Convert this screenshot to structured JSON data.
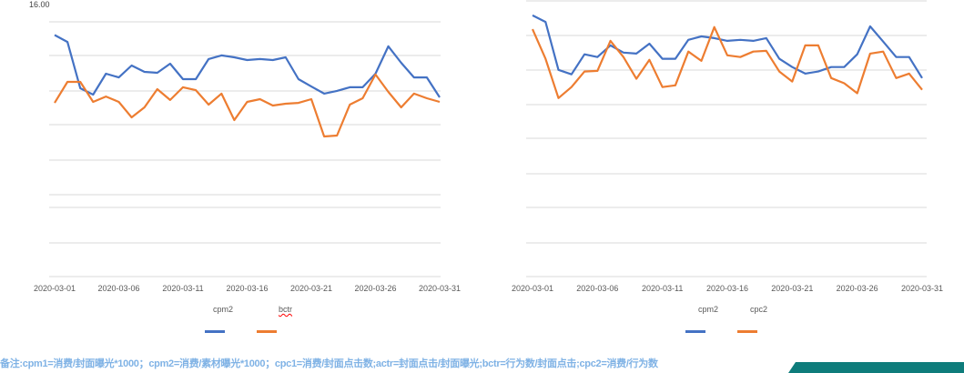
{
  "chart_data": [
    {
      "type": "line",
      "x_start": "2020-03-01",
      "x_end": "2020-03-31",
      "xticks": [
        "2020-03-01",
        "2020-03-06",
        "2020-03-11",
        "2020-03-16",
        "2020-03-21",
        "2020-03-26",
        "2020-03-31"
      ],
      "ytop_label": "16.00",
      "ylim": [
        0,
        16
      ],
      "grid": true,
      "legend": "bottom",
      "series": [
        {
          "name": "cpm2",
          "color": "#4472c4",
          "values": [
            15.17,
            14.74,
            11.83,
            11.43,
            12.74,
            12.51,
            13.26,
            12.86,
            12.8,
            13.37,
            12.4,
            12.4,
            13.66,
            13.89,
            13.77,
            13.6,
            13.66,
            13.6,
            13.77,
            12.4,
            11.94,
            11.49,
            11.66,
            11.89,
            11.89,
            12.74,
            14.46,
            13.43,
            12.51,
            12.51,
            11.26
          ]
        },
        {
          "name": "bctr",
          "color": "#ed7d31",
          "values": [
            10.91,
            12.23,
            12.23,
            10.97,
            11.31,
            10.97,
            10.0,
            10.63,
            11.77,
            11.09,
            11.89,
            11.71,
            10.8,
            11.49,
            9.83,
            10.97,
            11.14,
            10.74,
            10.86,
            10.91,
            11.14,
            8.8,
            8.86,
            10.8,
            11.2,
            12.69,
            11.6,
            10.63,
            11.49,
            11.2,
            10.97
          ]
        }
      ]
    },
    {
      "type": "line",
      "x_start": "2020-03-01",
      "x_end": "2020-03-31",
      "xticks": [
        "2020-03-01",
        "2020-03-06",
        "2020-03-11",
        "2020-03-16",
        "2020-03-21",
        "2020-03-26",
        "2020-03-31"
      ],
      "ylim": [
        0,
        8
      ],
      "grid": true,
      "legend": "bottom",
      "series": [
        {
          "name": "cpm2",
          "color": "#4472c4",
          "values": [
            7.58,
            7.39,
            6.0,
            5.87,
            6.45,
            6.37,
            6.71,
            6.5,
            6.47,
            6.76,
            6.32,
            6.32,
            6.87,
            6.97,
            6.92,
            6.84,
            6.87,
            6.84,
            6.92,
            6.32,
            6.08,
            5.89,
            5.95,
            6.08,
            6.08,
            6.45,
            7.26,
            6.82,
            6.37,
            6.37,
            5.76
          ]
        },
        {
          "name": "cpc2",
          "color": "#ed7d31",
          "values": [
            7.18,
            6.32,
            5.18,
            5.5,
            5.95,
            5.97,
            6.84,
            6.37,
            5.74,
            6.29,
            5.5,
            5.55,
            6.53,
            6.26,
            7.24,
            6.42,
            6.37,
            6.53,
            6.55,
            5.95,
            5.66,
            6.71,
            6.71,
            5.76,
            5.61,
            5.32,
            6.47,
            6.53,
            5.76,
            5.89,
            5.42
          ]
        }
      ]
    }
  ],
  "note": "备注:cpm1=消费/封面曝光*1000；cpm2=消费/素材曝光*1000；cpc1=消费/封面点击数;actr=封面点击/封面曝光;bctr=行为数/封面点击;cpc2=消费/行为数"
}
